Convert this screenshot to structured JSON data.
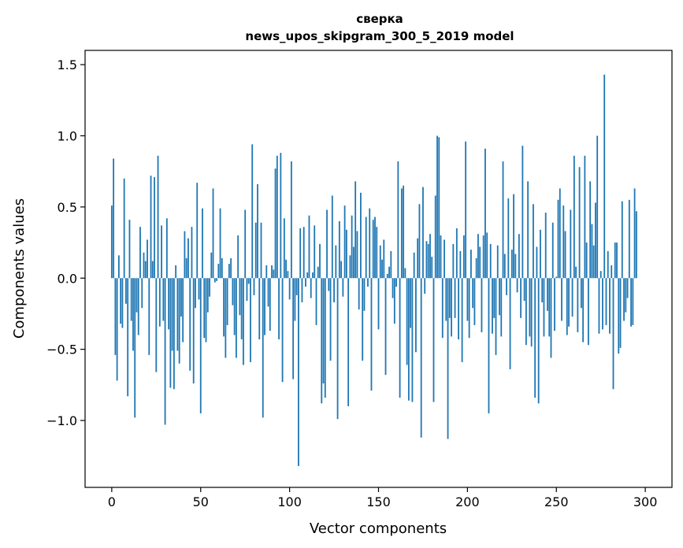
{
  "chart_data": {
    "type": "bar",
    "title": "сверка",
    "subtitle": "news_upos_skipgram_300_5_2019 model",
    "xlabel": "Vector components",
    "ylabel": "Components values",
    "xlim": [
      -15,
      315
    ],
    "ylim": [
      -1.47,
      1.6
    ],
    "xticks": [
      0,
      50,
      100,
      150,
      200,
      250,
      300
    ],
    "xtick_labels": [
      "0",
      "50",
      "100",
      "150",
      "200",
      "250",
      "300"
    ],
    "yticks": [
      -1.0,
      -0.5,
      0.0,
      0.5,
      1.0,
      1.5
    ],
    "ytick_labels": [
      "−1.0",
      "−0.5",
      "0.0",
      "0.5",
      "1.0",
      "1.5"
    ],
    "grid": false,
    "legend": false,
    "bar_color": "#1f77b4",
    "x_start": 0,
    "values": [
      0.51,
      0.84,
      -0.54,
      -0.72,
      0.16,
      -0.32,
      -0.35,
      0.7,
      -0.18,
      -0.83,
      0.41,
      -0.3,
      -0.51,
      -0.98,
      -0.24,
      -0.4,
      0.36,
      -0.21,
      0.18,
      0.12,
      0.27,
      -0.54,
      0.72,
      0.12,
      0.71,
      -0.66,
      0.86,
      -0.34,
      0.37,
      -0.3,
      -1.03,
      0.42,
      -0.36,
      -0.77,
      -0.51,
      -0.78,
      0.09,
      -0.51,
      -0.6,
      -0.27,
      -0.45,
      0.33,
      0.14,
      0.28,
      -0.65,
      0.36,
      -0.74,
      -0.21,
      0.67,
      -0.15,
      -0.95,
      0.49,
      -0.42,
      -0.45,
      -0.24,
      -0.13,
      0.18,
      0.63,
      -0.03,
      -0.02,
      0.1,
      0.49,
      0.14,
      -0.41,
      -0.56,
      -0.33,
      0.1,
      0.14,
      -0.19,
      -0.4,
      -0.56,
      0.3,
      -0.26,
      -0.43,
      -0.61,
      0.48,
      -0.16,
      -0.04,
      -0.59,
      0.94,
      -0.12,
      0.39,
      0.66,
      -0.43,
      0.39,
      -0.98,
      -0.4,
      0.09,
      -0.2,
      -0.37,
      0.09,
      0.06,
      0.77,
      0.86,
      -0.43,
      0.88,
      -0.73,
      0.42,
      0.13,
      0.05,
      -0.15,
      0.82,
      -0.71,
      -0.3,
      -0.12,
      -1.32,
      0.35,
      -0.17,
      0.36,
      -0.06,
      0.04,
      0.44,
      -0.14,
      0.04,
      0.37,
      -0.33,
      0.08,
      0.24,
      -0.88,
      -0.74,
      -0.84,
      0.48,
      -0.09,
      -0.58,
      0.58,
      -0.17,
      0.23,
      -0.99,
      0.4,
      0.12,
      -0.13,
      0.51,
      0.34,
      -0.9,
      0.16,
      0.44,
      0.22,
      0.68,
      0.33,
      -0.22,
      0.6,
      -0.58,
      -0.23,
      0.43,
      -0.06,
      0.49,
      -0.79,
      0.41,
      0.43,
      0.36,
      -0.36,
      0.23,
      0.13,
      0.27,
      -0.68,
      0.03,
      0.08,
      0.19,
      -0.14,
      -0.32,
      -0.06,
      0.82,
      -0.84,
      0.63,
      0.65,
      0.07,
      -0.61,
      -0.86,
      -0.35,
      -0.87,
      0.18,
      -0.52,
      0.28,
      0.52,
      -1.12,
      0.64,
      -0.11,
      0.26,
      0.24,
      0.31,
      0.15,
      -0.87,
      0.58,
      1.0,
      0.99,
      0.3,
      -0.42,
      0.27,
      -0.3,
      -1.13,
      -0.28,
      -0.41,
      0.24,
      -0.28,
      0.35,
      -0.43,
      0.19,
      -0.59,
      0.3,
      0.96,
      -0.3,
      -0.42,
      0.2,
      -0.21,
      -0.33,
      0.14,
      0.31,
      0.22,
      -0.38,
      0.3,
      0.91,
      0.32,
      -0.95,
      0.24,
      -0.39,
      -0.28,
      -0.54,
      0.23,
      -0.26,
      -0.41,
      0.82,
      0.17,
      -0.12,
      0.56,
      -0.64,
      0.2,
      0.59,
      0.17,
      -0.1,
      0.31,
      -0.28,
      0.93,
      -0.16,
      -0.47,
      0.68,
      -0.41,
      -0.48,
      0.52,
      -0.84,
      0.22,
      -0.88,
      0.34,
      -0.17,
      -0.41,
      0.46,
      -0.23,
      -0.41,
      -0.56,
      0.39,
      -0.37,
      0.01,
      0.55,
      0.63,
      -0.3,
      0.51,
      0.33,
      -0.4,
      -0.34,
      0.48,
      -0.27,
      0.86,
      0.08,
      -0.38,
      0.78,
      -0.21,
      -0.45,
      0.86,
      0.25,
      -0.47,
      0.68,
      0.38,
      0.23,
      0.53,
      1.0,
      -0.39,
      0.05,
      -0.36,
      1.43,
      -0.33,
      0.19,
      -0.39,
      0.09,
      -0.78,
      0.25,
      0.25,
      -0.53,
      -0.49,
      0.54,
      -0.3,
      -0.24,
      -0.14,
      0.55,
      -0.34,
      -0.33,
      0.63,
      0.47
    ]
  }
}
